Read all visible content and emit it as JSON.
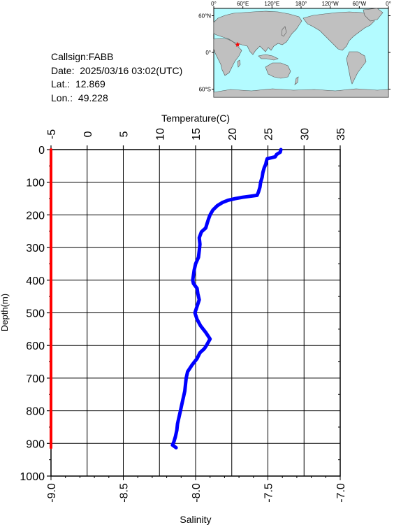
{
  "info": {
    "callsign": "Callsign:FABB",
    "date": "Date:  2025/03/16 03:02(UTC)",
    "lat": "Lat.:  12.869",
    "lon": "Lon.:  49.228"
  },
  "map": {
    "lon_labels": [
      "0°",
      "60°E",
      "120°E",
      "180°",
      "120°W",
      "60°W",
      "0°"
    ],
    "lat_labels": [
      "60°N",
      "0°",
      "60°S"
    ],
    "marker": {
      "lon": 49.228,
      "lat": 12.869
    },
    "colors": {
      "ocean": "#b3fbff",
      "land": "#c0c0c0",
      "marker": "#ff0000"
    }
  },
  "chart_data": {
    "type": "line",
    "title": "",
    "top_axis": {
      "label": "Temperature(C)",
      "range": [
        -5,
        35
      ],
      "ticks": [
        -5,
        0,
        5,
        10,
        15,
        20,
        25,
        30,
        35
      ]
    },
    "bottom_axis": {
      "label": "Salinity",
      "range": [
        -9.0,
        -7.0
      ],
      "ticks": [
        "-9.0",
        "-8.5",
        "-8.0",
        "-7.5",
        "-7.0"
      ]
    },
    "y_axis": {
      "label": "Depth(m)",
      "range": [
        0,
        1000
      ],
      "inverted": true,
      "ticks": [
        0,
        100,
        200,
        300,
        400,
        500,
        600,
        700,
        800,
        900,
        1000
      ]
    },
    "grid": true,
    "series": [
      {
        "color": "#0000ff",
        "axis": "temperature",
        "points": [
          [
            26.8,
            0
          ],
          [
            26.7,
            8
          ],
          [
            26.2,
            15
          ],
          [
            26.0,
            22
          ],
          [
            24.9,
            28
          ],
          [
            24.8,
            35
          ],
          [
            24.7,
            45
          ],
          [
            24.5,
            55
          ],
          [
            24.3,
            70
          ],
          [
            24.2,
            85
          ],
          [
            24.0,
            100
          ],
          [
            23.9,
            115
          ],
          [
            23.7,
            130
          ],
          [
            23.5,
            140
          ],
          [
            22.5,
            143
          ],
          [
            21.5,
            146
          ],
          [
            20.5,
            150
          ],
          [
            19.5,
            155
          ],
          [
            18.7,
            162
          ],
          [
            18.0,
            172
          ],
          [
            17.4,
            185
          ],
          [
            17.0,
            200
          ],
          [
            16.8,
            212
          ],
          [
            16.6,
            225
          ],
          [
            16.4,
            240
          ],
          [
            15.8,
            252
          ],
          [
            15.5,
            270
          ],
          [
            15.6,
            290
          ],
          [
            15.5,
            310
          ],
          [
            15.4,
            330
          ],
          [
            15.0,
            350
          ],
          [
            14.8,
            370
          ],
          [
            14.7,
            385
          ],
          [
            14.6,
            400
          ],
          [
            14.7,
            410
          ],
          [
            15.2,
            425
          ],
          [
            15.3,
            440
          ],
          [
            15.5,
            460
          ],
          [
            15.2,
            480
          ],
          [
            14.9,
            500
          ],
          [
            15.2,
            520
          ],
          [
            15.7,
            540
          ],
          [
            16.4,
            560
          ],
          [
            17.0,
            580
          ],
          [
            16.5,
            600
          ],
          [
            16.2,
            610
          ],
          [
            15.6,
            622
          ],
          [
            15.2,
            640
          ],
          [
            14.5,
            660
          ],
          [
            13.9,
            680
          ],
          [
            13.7,
            700
          ],
          [
            13.6,
            720
          ],
          [
            13.5,
            740
          ],
          [
            13.3,
            760
          ],
          [
            13.1,
            780
          ],
          [
            12.9,
            800
          ],
          [
            12.7,
            820
          ],
          [
            12.5,
            840
          ],
          [
            12.4,
            860
          ],
          [
            12.2,
            880
          ],
          [
            12.0,
            895
          ],
          [
            11.8,
            905
          ],
          [
            12.3,
            913
          ]
        ]
      },
      {
        "color": "#ff0000",
        "axis": "salinity",
        "points": [
          [
            -9.0,
            0
          ],
          [
            -9.0,
            913
          ]
        ]
      }
    ]
  }
}
